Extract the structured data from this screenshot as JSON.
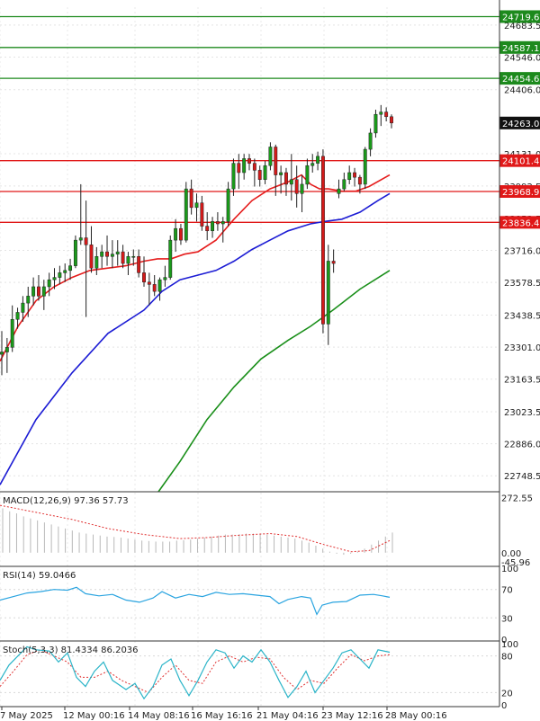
{
  "chart_data": {
    "type": "candlestick",
    "colors": {
      "bull": "#1a9a1a",
      "bear": "#d41a1a",
      "ma20": "#e51c1c",
      "ma50": "#1c1cd4",
      "ma200": "#1a8f1a",
      "support": "#e01818",
      "resistance": "#1d8a1d",
      "rsi": "#2aa4e0",
      "stoch_k": "#2ab4c8",
      "stoch_d": "#e03030",
      "macd_hist": "#b8b8b8",
      "macd_signal": "#e03030"
    },
    "price_axis": {
      "range": [
        22680,
        24760
      ],
      "ticks": [
        "24683.5",
        "24546.0",
        "24406.0",
        "24131.0",
        "23992.5",
        "23853.5",
        "23716.0",
        "23578.5",
        "23438.5",
        "23301.0",
        "23163.5",
        "23023.5",
        "22886.0",
        "22748.5"
      ]
    },
    "levels": [
      {
        "kind": "resistance",
        "value": 24719.6,
        "label": "24719.6"
      },
      {
        "kind": "resistance",
        "value": 24587.1,
        "label": "24587.1"
      },
      {
        "kind": "resistance",
        "value": 24454.6,
        "label": "24454.6"
      },
      {
        "kind": "support",
        "value": 24101.4,
        "label": "24101.4"
      },
      {
        "kind": "support",
        "value": 23968.9,
        "label": "23968.9"
      },
      {
        "kind": "support",
        "value": 23836.4,
        "label": "23836.4"
      }
    ],
    "last_price": {
      "value": 24263.0,
      "label": "24263.0"
    },
    "time_labels": [
      "7 May 2025",
      "12 May 00:16",
      "14 May 08:16",
      "16 May 16:16",
      "21 May 04:16",
      "23 May 12:16",
      "28 May 00:16"
    ],
    "candles": [
      [
        23270,
        23370,
        23180,
        23280
      ],
      [
        23280,
        23340,
        23190,
        23300
      ],
      [
        23300,
        23480,
        23280,
        23420
      ],
      [
        23420,
        23470,
        23380,
        23450
      ],
      [
        23450,
        23520,
        23410,
        23490
      ],
      [
        23490,
        23560,
        23430,
        23520
      ],
      [
        23520,
        23600,
        23480,
        23560
      ],
      [
        23560,
        23610,
        23500,
        23520
      ],
      [
        23520,
        23590,
        23460,
        23560
      ],
      [
        23560,
        23620,
        23520,
        23590
      ],
      [
        23590,
        23640,
        23550,
        23600
      ],
      [
        23600,
        23650,
        23570,
        23620
      ],
      [
        23620,
        23660,
        23580,
        23630
      ],
      [
        23630,
        23680,
        23590,
        23650
      ],
      [
        23650,
        23780,
        23640,
        23760
      ],
      [
        23760,
        24000,
        23740,
        23770
      ],
      [
        23770,
        23930,
        23430,
        23740
      ],
      [
        23740,
        23820,
        23620,
        23640
      ],
      [
        23640,
        23730,
        23610,
        23690
      ],
      [
        23690,
        23740,
        23640,
        23710
      ],
      [
        23710,
        23780,
        23650,
        23690
      ],
      [
        23690,
        23760,
        23640,
        23700
      ],
      [
        23700,
        23760,
        23650,
        23710
      ],
      [
        23710,
        23740,
        23640,
        23660
      ],
      [
        23660,
        23710,
        23610,
        23690
      ],
      [
        23690,
        23720,
        23650,
        23690
      ],
      [
        23690,
        23720,
        23600,
        23620
      ],
      [
        23620,
        23690,
        23560,
        23580
      ],
      [
        23580,
        23620,
        23480,
        23570
      ],
      [
        23570,
        23610,
        23520,
        23540
      ],
      [
        23540,
        23600,
        23500,
        23590
      ],
      [
        23590,
        23650,
        23560,
        23600
      ],
      [
        23600,
        23780,
        23590,
        23760
      ],
      [
        23760,
        23850,
        23710,
        23810
      ],
      [
        23810,
        23830,
        23740,
        23760
      ],
      [
        23760,
        24010,
        23750,
        23980
      ],
      [
        23980,
        24020,
        23870,
        23900
      ],
      [
        23900,
        23960,
        23840,
        23920
      ],
      [
        23920,
        23950,
        23800,
        23820
      ],
      [
        23820,
        23880,
        23760,
        23800
      ],
      [
        23800,
        23860,
        23770,
        23840
      ],
      [
        23840,
        23880,
        23800,
        23830
      ],
      [
        23830,
        23860,
        23750,
        23840
      ],
      [
        23840,
        24010,
        23820,
        23980
      ],
      [
        23980,
        24110,
        23950,
        24090
      ],
      [
        24090,
        24130,
        23980,
        24050
      ],
      [
        24050,
        24130,
        24020,
        24110
      ],
      [
        24110,
        24130,
        24060,
        24090
      ],
      [
        24090,
        24110,
        23990,
        24060
      ],
      [
        24060,
        24080,
        23990,
        24020
      ],
      [
        24020,
        24100,
        24000,
        24080
      ],
      [
        24080,
        24180,
        24060,
        24160
      ],
      [
        24160,
        24170,
        23950,
        24040
      ],
      [
        24040,
        24080,
        23960,
        24050
      ],
      [
        24050,
        24070,
        23950,
        24000
      ],
      [
        24000,
        24130,
        23930,
        24020
      ],
      [
        24020,
        24080,
        23900,
        23960
      ],
      [
        23960,
        24040,
        23880,
        24000
      ],
      [
        24000,
        24110,
        23980,
        24080
      ],
      [
        24080,
        24130,
        24050,
        24090
      ],
      [
        24090,
        24140,
        24060,
        24120
      ],
      [
        24120,
        24150,
        23360,
        23400
      ],
      [
        23400,
        23740,
        23310,
        23670
      ],
      [
        23670,
        23720,
        23620,
        23660
      ],
      [
        23960,
        24020,
        23940,
        23980
      ],
      [
        23980,
        24050,
        23970,
        24020
      ],
      [
        24020,
        24080,
        24000,
        24050
      ],
      [
        24050,
        24070,
        23990,
        24030
      ],
      [
        24030,
        24040,
        23960,
        24000
      ],
      [
        24000,
        24160,
        23980,
        24150
      ],
      [
        24150,
        24240,
        24120,
        24220
      ],
      [
        24220,
        24320,
        24200,
        24300
      ],
      [
        24300,
        24340,
        24250,
        24310
      ],
      [
        24310,
        24330,
        24270,
        24290
      ],
      [
        24290,
        24300,
        24240,
        24263
      ]
    ],
    "ma20": [
      [
        0,
        23240
      ],
      [
        20,
        23390
      ],
      [
        40,
        23500
      ],
      [
        60,
        23560
      ],
      [
        80,
        23600
      ],
      [
        100,
        23630
      ],
      [
        120,
        23640
      ],
      [
        140,
        23650
      ],
      [
        160,
        23670
      ],
      [
        175,
        23680
      ],
      [
        190,
        23680
      ],
      [
        205,
        23700
      ],
      [
        220,
        23710
      ],
      [
        240,
        23760
      ],
      [
        260,
        23850
      ],
      [
        280,
        23930
      ],
      [
        300,
        23980
      ],
      [
        320,
        24010
      ],
      [
        335,
        24040
      ],
      [
        345,
        24000
      ],
      [
        355,
        23980
      ],
      [
        365,
        23980
      ],
      [
        380,
        23970
      ],
      [
        395,
        23970
      ],
      [
        410,
        23990
      ],
      [
        433,
        24040
      ]
    ],
    "ma50": [
      [
        0,
        22710
      ],
      [
        40,
        22990
      ],
      [
        80,
        23190
      ],
      [
        120,
        23360
      ],
      [
        160,
        23460
      ],
      [
        180,
        23540
      ],
      [
        200,
        23590
      ],
      [
        220,
        23610
      ],
      [
        240,
        23630
      ],
      [
        260,
        23670
      ],
      [
        280,
        23720
      ],
      [
        300,
        23760
      ],
      [
        320,
        23800
      ],
      [
        345,
        23830
      ],
      [
        360,
        23840
      ],
      [
        380,
        23850
      ],
      [
        400,
        23880
      ],
      [
        420,
        23930
      ],
      [
        433,
        23960
      ]
    ],
    "ma200": [
      [
        176,
        22680
      ],
      [
        200,
        22810
      ],
      [
        230,
        22990
      ],
      [
        260,
        23130
      ],
      [
        290,
        23250
      ],
      [
        320,
        23330
      ],
      [
        345,
        23390
      ],
      [
        370,
        23460
      ],
      [
        400,
        23550
      ],
      [
        433,
        23630
      ]
    ],
    "macd": {
      "label": "MACD(12,26,9) 97.36 57.73",
      "axis_ticks": [
        "272.55",
        "0.00",
        "-45.96"
      ],
      "range": [
        -50,
        280
      ],
      "hist": [
        220,
        205,
        195,
        180,
        170,
        160,
        150,
        140,
        130,
        120,
        110,
        100,
        95,
        90,
        85,
        80,
        78,
        75,
        70,
        65,
        60,
        58,
        55,
        55,
        55,
        60,
        62,
        65,
        70,
        75,
        80,
        85,
        90,
        90,
        92,
        95,
        95,
        92,
        90,
        85,
        80,
        75,
        70,
        60,
        50,
        35,
        20,
        5,
        -5,
        -10,
        -5,
        5,
        20,
        40,
        60,
        80,
        100
      ],
      "signal": [
        [
          0,
          235
        ],
        [
          40,
          200
        ],
        [
          80,
          165
        ],
        [
          120,
          120
        ],
        [
          160,
          90
        ],
        [
          200,
          70
        ],
        [
          230,
          75
        ],
        [
          260,
          85
        ],
        [
          300,
          95
        ],
        [
          330,
          80
        ],
        [
          360,
          40
        ],
        [
          390,
          5
        ],
        [
          410,
          10
        ],
        [
          433,
          60
        ]
      ]
    },
    "rsi": {
      "label": "RSI(14) 59.0466",
      "axis_ticks": [
        "100",
        "70",
        "30",
        "0"
      ],
      "range": [
        0,
        100
      ],
      "line": [
        [
          0,
          55
        ],
        [
          15,
          60
        ],
        [
          30,
          65
        ],
        [
          45,
          67
        ],
        [
          60,
          70
        ],
        [
          75,
          69
        ],
        [
          85,
          73
        ],
        [
          95,
          64
        ],
        [
          110,
          61
        ],
        [
          125,
          63
        ],
        [
          140,
          55
        ],
        [
          155,
          52
        ],
        [
          170,
          58
        ],
        [
          180,
          67
        ],
        [
          195,
          58
        ],
        [
          210,
          63
        ],
        [
          225,
          60
        ],
        [
          240,
          66
        ],
        [
          255,
          63
        ],
        [
          270,
          64
        ],
        [
          285,
          62
        ],
        [
          300,
          60
        ],
        [
          310,
          50
        ],
        [
          320,
          56
        ],
        [
          335,
          60
        ],
        [
          345,
          58
        ],
        [
          352,
          35
        ],
        [
          358,
          48
        ],
        [
          370,
          52
        ],
        [
          385,
          53
        ],
        [
          400,
          62
        ],
        [
          415,
          63
        ],
        [
          425,
          61
        ],
        [
          433,
          59
        ]
      ]
    },
    "stoch": {
      "label": "Stoch(5,3,3) 81.4334 86.2036",
      "axis_ticks": [
        "100",
        "80",
        "20",
        "0"
      ],
      "range": [
        0,
        100
      ],
      "k": [
        [
          0,
          40
        ],
        [
          10,
          65
        ],
        [
          20,
          80
        ],
        [
          30,
          95
        ],
        [
          40,
          90
        ],
        [
          55,
          88
        ],
        [
          65,
          70
        ],
        [
          75,
          85
        ],
        [
          85,
          45
        ],
        [
          95,
          30
        ],
        [
          105,
          55
        ],
        [
          115,
          70
        ],
        [
          125,
          40
        ],
        [
          140,
          25
        ],
        [
          150,
          35
        ],
        [
          160,
          10
        ],
        [
          170,
          30
        ],
        [
          180,
          65
        ],
        [
          190,
          75
        ],
        [
          200,
          40
        ],
        [
          210,
          15
        ],
        [
          220,
          40
        ],
        [
          230,
          70
        ],
        [
          240,
          90
        ],
        [
          250,
          85
        ],
        [
          260,
          60
        ],
        [
          270,
          80
        ],
        [
          280,
          70
        ],
        [
          290,
          90
        ],
        [
          300,
          70
        ],
        [
          310,
          40
        ],
        [
          320,
          12
        ],
        [
          330,
          30
        ],
        [
          340,
          55
        ],
        [
          350,
          20
        ],
        [
          360,
          40
        ],
        [
          370,
          60
        ],
        [
          380,
          85
        ],
        [
          390,
          90
        ],
        [
          400,
          75
        ],
        [
          410,
          60
        ],
        [
          420,
          90
        ],
        [
          433,
          86
        ]
      ],
      "d": [
        [
          0,
          30
        ],
        [
          15,
          55
        ],
        [
          30,
          82
        ],
        [
          45,
          90
        ],
        [
          60,
          80
        ],
        [
          75,
          70
        ],
        [
          90,
          45
        ],
        [
          105,
          45
        ],
        [
          120,
          55
        ],
        [
          135,
          40
        ],
        [
          150,
          30
        ],
        [
          165,
          20
        ],
        [
          180,
          45
        ],
        [
          195,
          65
        ],
        [
          210,
          40
        ],
        [
          225,
          35
        ],
        [
          240,
          70
        ],
        [
          255,
          80
        ],
        [
          270,
          70
        ],
        [
          285,
          78
        ],
        [
          300,
          75
        ],
        [
          315,
          45
        ],
        [
          330,
          25
        ],
        [
          345,
          40
        ],
        [
          360,
          35
        ],
        [
          375,
          60
        ],
        [
          390,
          82
        ],
        [
          405,
          72
        ],
        [
          420,
          80
        ],
        [
          433,
          82
        ]
      ]
    }
  }
}
